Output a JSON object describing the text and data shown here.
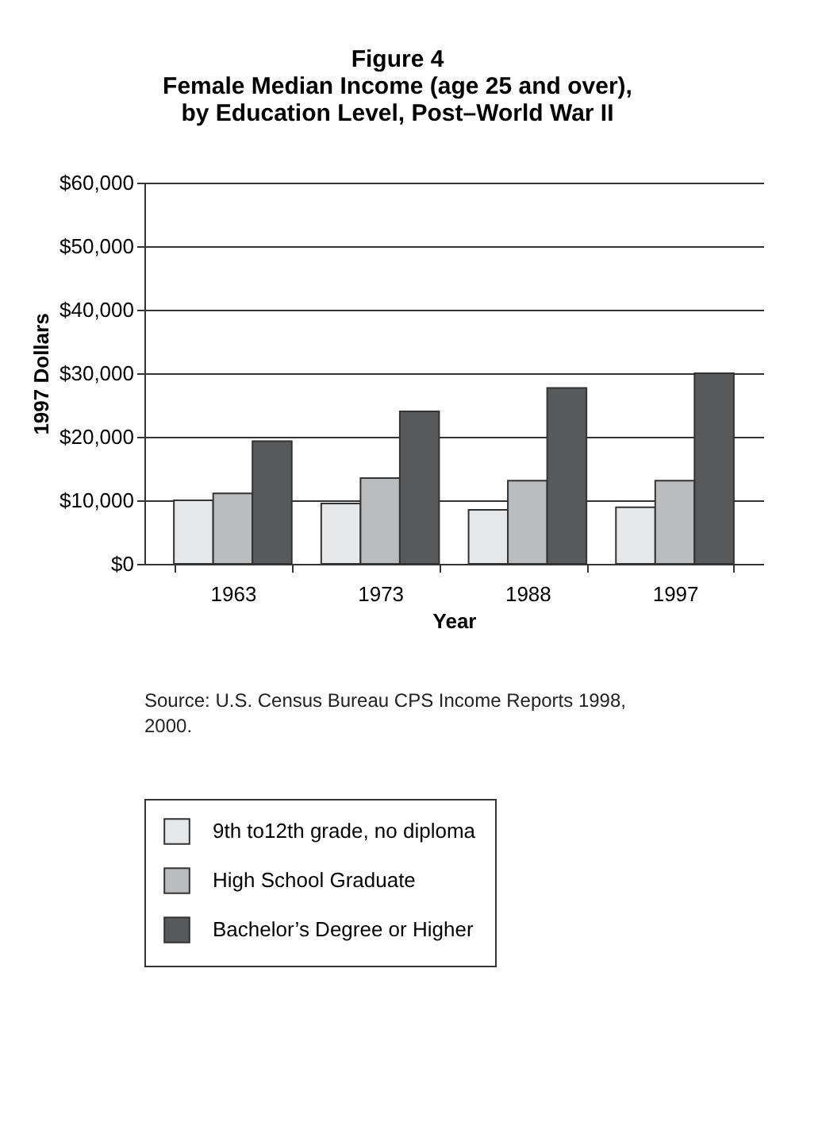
{
  "chart_data": {
    "type": "bar",
    "title": [
      "Figure 4",
      "Female Median Income (age 25 and over),",
      "by Education Level, Post–World War II"
    ],
    "xlabel": "Year",
    "ylabel": "1997 Dollars",
    "categories": [
      "1963",
      "1973",
      "1988",
      "1997"
    ],
    "series": [
      {
        "name": "9th to12th grade, no diploma",
        "color": "#e6e7e8",
        "values": [
          10000,
          9500,
          8500,
          8900
        ]
      },
      {
        "name": "High School Graduate",
        "color": "#bbbcbe",
        "values": [
          11100,
          13500,
          13100,
          13100
        ]
      },
      {
        "name": "Bachelor’s Degree or Higher",
        "color": "#58595b",
        "values": [
          19300,
          24000,
          27700,
          30000
        ]
      }
    ],
    "ylim": [
      0,
      60000
    ],
    "yticks": [
      {
        "value": 0,
        "label": "$0"
      },
      {
        "value": 10000,
        "label": "$10,000"
      },
      {
        "value": 20000,
        "label": "$20,000"
      },
      {
        "value": 30000,
        "label": "$30,000"
      },
      {
        "value": 40000,
        "label": "$40,000"
      },
      {
        "value": 50000,
        "label": "$50,000"
      },
      {
        "value": 60000,
        "label": "$60,000"
      }
    ],
    "grid": "y",
    "legend": "bottom",
    "annotations": [
      "Source: U.S. Census Bureau CPS Income Reports 1998, 2000."
    ]
  }
}
